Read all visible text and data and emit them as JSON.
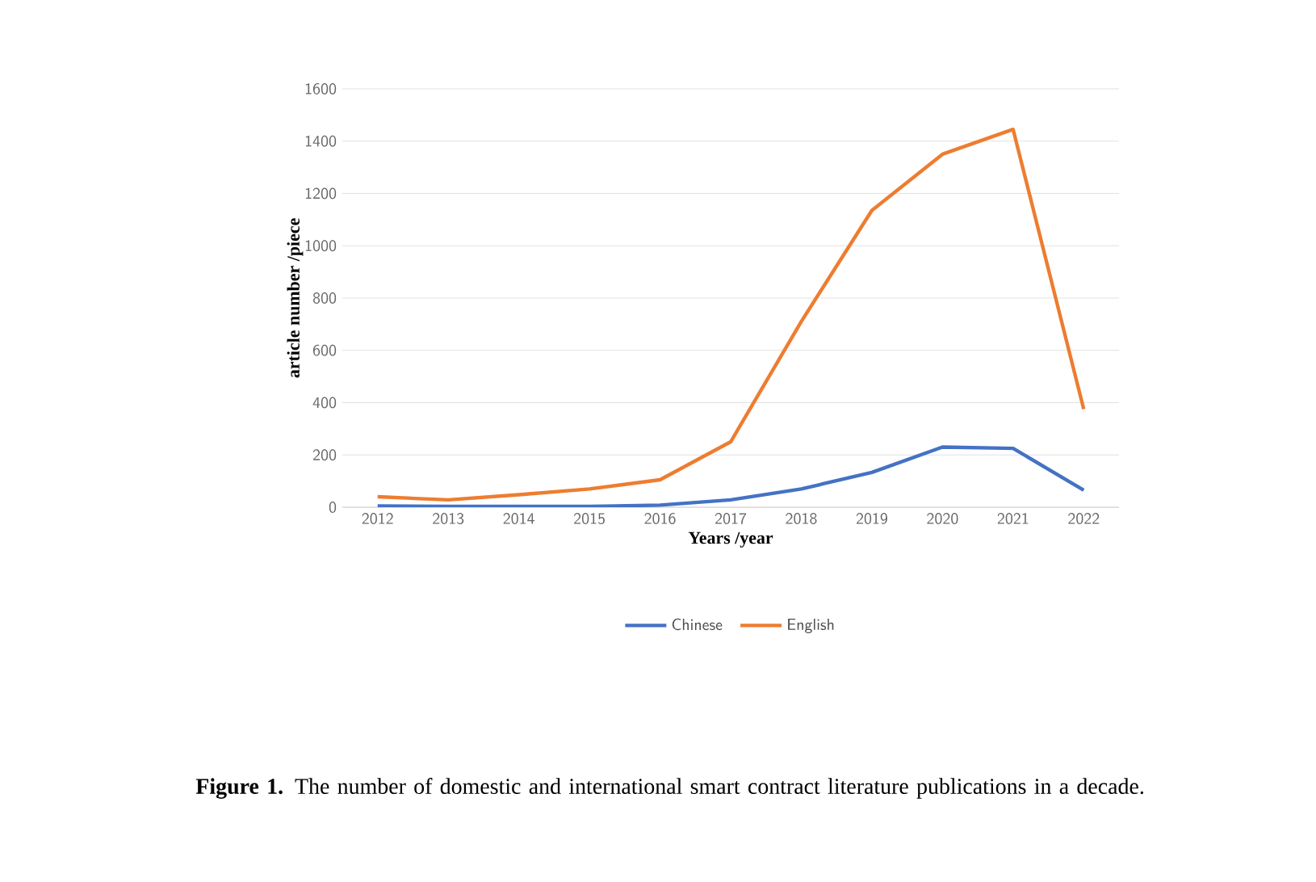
{
  "chart_data": {
    "type": "line",
    "xlabel": "Years /year",
    "ylabel": "article number  /piece",
    "categories": [
      "2012",
      "2013",
      "2014",
      "2015",
      "2016",
      "2017",
      "2018",
      "2019",
      "2020",
      "2021",
      "2022"
    ],
    "series": [
      {
        "name": "Chinese",
        "color": "#4472c4",
        "values": [
          5,
          3,
          3,
          3,
          8,
          28,
          70,
          133,
          230,
          225,
          65
        ]
      },
      {
        "name": "English",
        "color": "#ed7d31",
        "values": [
          40,
          28,
          48,
          70,
          105,
          250,
          710,
          1135,
          1350,
          1445,
          375
        ]
      }
    ],
    "ylim": [
      0,
      1600
    ],
    "yticks": [
      0,
      200,
      400,
      600,
      800,
      1000,
      1200,
      1400,
      1600
    ],
    "grid": "y",
    "legend": "bottom",
    "marker": "none",
    "line_style": "solid",
    "annotations": [
      "**Figure 1.** The number of domestic and international smart contract literature publications in a decade."
    ]
  }
}
